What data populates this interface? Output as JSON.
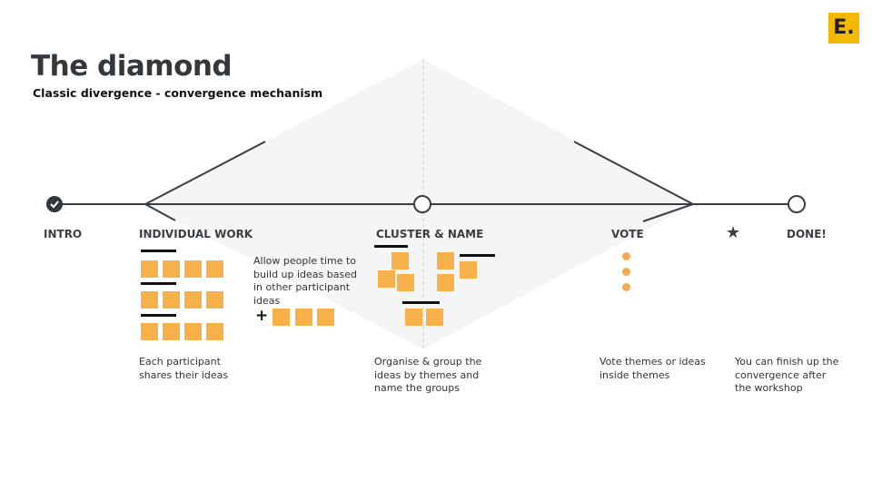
{
  "logo": {
    "text": "E.",
    "color": "#f5b800"
  },
  "header": {
    "title": "The diamond",
    "subtitle": "Classic divergence - convergence mechanism"
  },
  "stages": [
    {
      "label": "INTRO",
      "status": "done"
    },
    {
      "label": "INDIVIDUAL WORK"
    },
    {
      "label": "CLUSTER & NAME",
      "status": "current"
    },
    {
      "label": "VOTE"
    },
    {
      "label": "DONE!"
    }
  ],
  "descriptions": {
    "individual": "Each participant shares their ideas",
    "build_up": "Allow people time to build up ideas based in other participant ideas",
    "cluster": "Organise & group the ideas by themes and name the groups",
    "vote": "Vote themes or ideas inside themes",
    "done": "You can finish up the convergence after the workshop"
  },
  "icons": {
    "plus": "+",
    "star": "★"
  },
  "colors": {
    "sticky": "#f8b04a",
    "diamond_fill": "#f4f5f7",
    "line": "#3a3e42"
  }
}
